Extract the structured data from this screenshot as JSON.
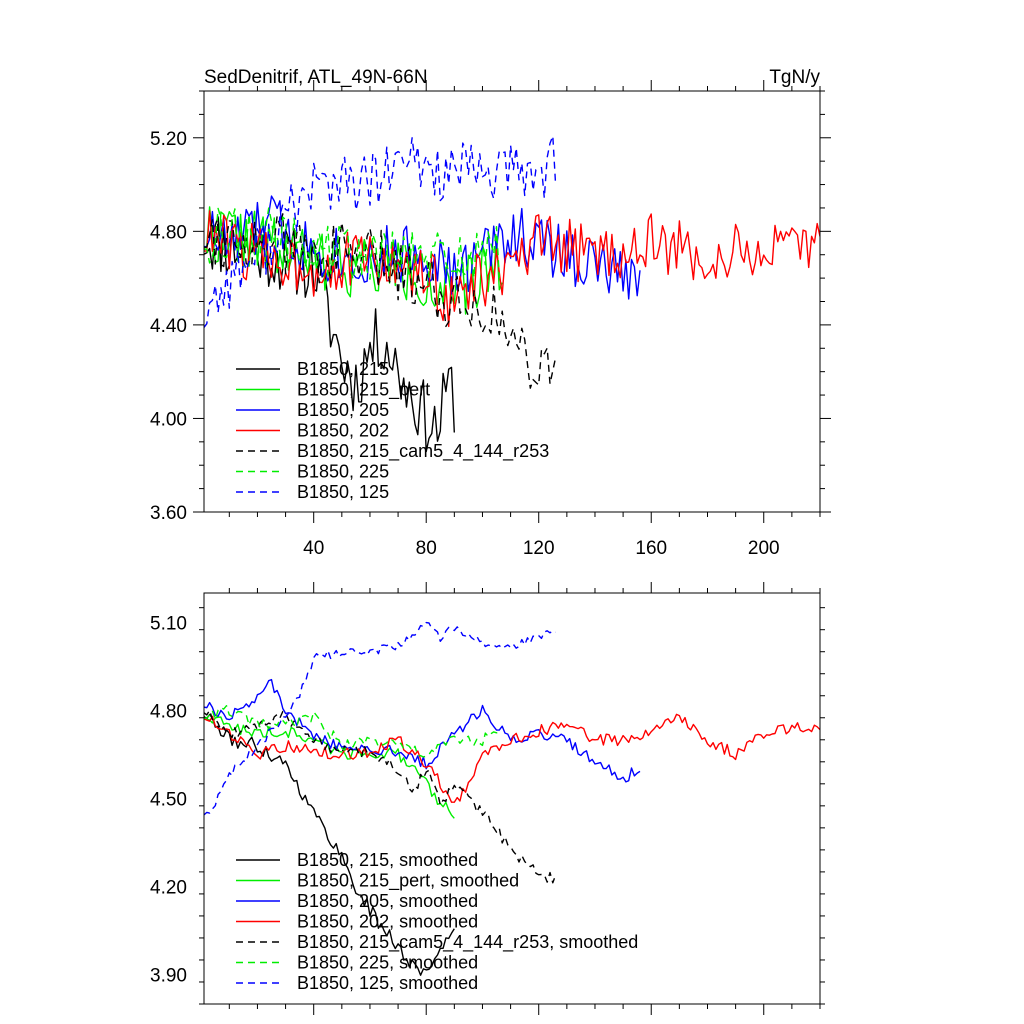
{
  "chart_data": [
    {
      "type": "line",
      "title": "SedDenitrif, ATL_49N-66N",
      "units": "TgN/y",
      "xlim": [
        1,
        220
      ],
      "ylim": [
        3.6,
        5.4
      ],
      "xticks": [
        40,
        80,
        120,
        160,
        200
      ],
      "yticks": [
        3.6,
        4.0,
        4.4,
        4.8,
        5.2
      ],
      "ytick_labels": [
        "3.60",
        "4.00",
        "4.40",
        "4.80",
        "5.20"
      ],
      "legend_position": "bottom-left",
      "series": [
        {
          "name": "B1850, 215",
          "color": "#000000",
          "dash": "solid",
          "n": 90,
          "anchors": [
            [
              1,
              4.78
            ],
            [
              10,
              4.74
            ],
            [
              20,
              4.72
            ],
            [
              30,
              4.68
            ],
            [
              40,
              4.65
            ],
            [
              45,
              4.45
            ],
            [
              50,
              4.25
            ],
            [
              55,
              4.15
            ],
            [
              60,
              4.3
            ],
            [
              65,
              4.35
            ],
            [
              70,
              4.2
            ],
            [
              75,
              4.1
            ],
            [
              80,
              4.0
            ],
            [
              84,
              3.95
            ],
            [
              88,
              4.15
            ],
            [
              90,
              4.08
            ]
          ],
          "amp": 0.15,
          "seed": 11
        },
        {
          "name": "B1850, 215_pert",
          "color": "#00ee00",
          "dash": "solid",
          "n": 107,
          "anchors": [
            [
              1,
              4.8
            ],
            [
              15,
              4.78
            ],
            [
              30,
              4.7
            ],
            [
              50,
              4.66
            ],
            [
              70,
              4.64
            ],
            [
              80,
              4.6
            ],
            [
              90,
              4.5
            ],
            [
              100,
              4.62
            ],
            [
              107,
              4.7
            ]
          ],
          "amp": 0.14,
          "seed": 22
        },
        {
          "name": "B1850, 205",
          "color": "#0000ff",
          "dash": "solid",
          "n": 156,
          "anchors": [
            [
              1,
              4.8
            ],
            [
              10,
              4.75
            ],
            [
              25,
              4.85
            ],
            [
              35,
              4.75
            ],
            [
              55,
              4.68
            ],
            [
              70,
              4.7
            ],
            [
              80,
              4.72
            ],
            [
              90,
              4.6
            ],
            [
              100,
              4.7
            ],
            [
              110,
              4.8
            ],
            [
              120,
              4.75
            ],
            [
              130,
              4.7
            ],
            [
              140,
              4.65
            ],
            [
              150,
              4.6
            ],
            [
              156,
              4.65
            ]
          ],
          "amp": 0.13,
          "seed": 33
        },
        {
          "name": "B1850, 202",
          "color": "#ff0000",
          "dash": "solid",
          "n": 220,
          "anchors": [
            [
              1,
              4.78
            ],
            [
              20,
              4.7
            ],
            [
              40,
              4.65
            ],
            [
              60,
              4.68
            ],
            [
              80,
              4.6
            ],
            [
              90,
              4.5
            ],
            [
              100,
              4.6
            ],
            [
              110,
              4.62
            ],
            [
              120,
              4.75
            ],
            [
              140,
              4.7
            ],
            [
              160,
              4.75
            ],
            [
              180,
              4.68
            ],
            [
              200,
              4.72
            ],
            [
              210,
              4.7
            ],
            [
              220,
              4.75
            ]
          ],
          "amp": 0.13,
          "seed": 44
        },
        {
          "name": "B1850, 215_cam5_4_144_r253",
          "color": "#000000",
          "dash": "dashed",
          "n": 126,
          "anchors": [
            [
              1,
              4.8
            ],
            [
              20,
              4.75
            ],
            [
              40,
              4.72
            ],
            [
              60,
              4.68
            ],
            [
              80,
              4.6
            ],
            [
              90,
              4.5
            ],
            [
              100,
              4.5
            ],
            [
              110,
              4.35
            ],
            [
              118,
              4.25
            ],
            [
              126,
              4.2
            ]
          ],
          "amp": 0.14,
          "seed": 55
        },
        {
          "name": "B1850, 225",
          "color": "#00ee00",
          "dash": "dashed",
          "n": 106,
          "anchors": [
            [
              1,
              4.78
            ],
            [
              20,
              4.8
            ],
            [
              40,
              4.72
            ],
            [
              60,
              4.7
            ],
            [
              80,
              4.68
            ],
            [
              90,
              4.7
            ],
            [
              100,
              4.7
            ],
            [
              106,
              4.7
            ]
          ],
          "amp": 0.12,
          "seed": 66
        },
        {
          "name": "B1850, 125",
          "color": "#0000ff",
          "dash": "dashed",
          "n": 126,
          "anchors": [
            [
              1,
              4.45
            ],
            [
              10,
              4.6
            ],
            [
              20,
              4.7
            ],
            [
              30,
              4.85
            ],
            [
              40,
              5.0
            ],
            [
              60,
              5.0
            ],
            [
              75,
              5.1
            ],
            [
              85,
              5.05
            ],
            [
              100,
              5.05
            ],
            [
              110,
              5.05
            ],
            [
              120,
              5.05
            ],
            [
              126,
              5.1
            ]
          ],
          "amp": 0.13,
          "seed": 77
        }
      ]
    },
    {
      "type": "line",
      "xlim": [
        1,
        220
      ],
      "ylim": [
        3.8,
        5.2
      ],
      "xticks": [
        40,
        80,
        120,
        160,
        200
      ],
      "yticks": [
        3.9,
        4.2,
        4.5,
        4.8,
        5.1
      ],
      "ytick_labels": [
        "3.90",
        "4.20",
        "4.50",
        "4.80",
        "5.10"
      ],
      "legend_position": "bottom-left",
      "series": [
        {
          "name": "B1850, 215, smoothed",
          "color": "#000000",
          "dash": "solid",
          "n": 90,
          "anchors": [
            [
              1,
              4.79
            ],
            [
              10,
              4.7
            ],
            [
              20,
              4.68
            ],
            [
              30,
              4.62
            ],
            [
              40,
              4.45
            ],
            [
              45,
              4.38
            ],
            [
              50,
              4.3
            ],
            [
              55,
              4.2
            ],
            [
              60,
              4.12
            ],
            [
              65,
              4.05
            ],
            [
              70,
              4.0
            ],
            [
              75,
              3.93
            ],
            [
              80,
              3.9
            ],
            [
              85,
              4.0
            ],
            [
              90,
              4.05
            ]
          ],
          "amp": 0.025,
          "seed": 111
        },
        {
          "name": "B1850, 215_pert, smoothed",
          "color": "#00ee00",
          "dash": "solid",
          "n": 90,
          "anchors": [
            [
              1,
              4.78
            ],
            [
              10,
              4.75
            ],
            [
              20,
              4.72
            ],
            [
              30,
              4.73
            ],
            [
              40,
              4.7
            ],
            [
              50,
              4.65
            ],
            [
              60,
              4.66
            ],
            [
              70,
              4.65
            ],
            [
              75,
              4.6
            ],
            [
              80,
              4.55
            ],
            [
              85,
              4.48
            ],
            [
              90,
              4.45
            ]
          ],
          "amp": 0.02,
          "seed": 122
        },
        {
          "name": "B1850, 205, smoothed",
          "color": "#0000ff",
          "dash": "solid",
          "n": 156,
          "anchors": [
            [
              1,
              4.82
            ],
            [
              10,
              4.78
            ],
            [
              20,
              4.85
            ],
            [
              25,
              4.9
            ],
            [
              30,
              4.8
            ],
            [
              40,
              4.72
            ],
            [
              50,
              4.67
            ],
            [
              60,
              4.67
            ],
            [
              70,
              4.66
            ],
            [
              80,
              4.62
            ],
            [
              90,
              4.72
            ],
            [
              100,
              4.8
            ],
            [
              110,
              4.7
            ],
            [
              120,
              4.72
            ],
            [
              130,
              4.7
            ],
            [
              140,
              4.62
            ],
            [
              150,
              4.57
            ],
            [
              156,
              4.6
            ]
          ],
          "amp": 0.02,
          "seed": 133
        },
        {
          "name": "B1850, 202, smoothed",
          "color": "#ff0000",
          "dash": "solid",
          "n": 220,
          "anchors": [
            [
              1,
              4.78
            ],
            [
              10,
              4.72
            ],
            [
              20,
              4.65
            ],
            [
              30,
              4.68
            ],
            [
              40,
              4.66
            ],
            [
              50,
              4.65
            ],
            [
              60,
              4.66
            ],
            [
              70,
              4.7
            ],
            [
              80,
              4.62
            ],
            [
              85,
              4.55
            ],
            [
              90,
              4.47
            ],
            [
              95,
              4.55
            ],
            [
              100,
              4.65
            ],
            [
              110,
              4.7
            ],
            [
              120,
              4.73
            ],
            [
              130,
              4.75
            ],
            [
              140,
              4.7
            ],
            [
              150,
              4.7
            ],
            [
              160,
              4.72
            ],
            [
              170,
              4.78
            ],
            [
              180,
              4.7
            ],
            [
              190,
              4.65
            ],
            [
              200,
              4.72
            ],
            [
              210,
              4.74
            ],
            [
              220,
              4.75
            ]
          ],
          "amp": 0.02,
          "seed": 144
        },
        {
          "name": "B1850, 215_cam5_4_144_r253, smoothed",
          "color": "#000000",
          "dash": "dashed",
          "n": 126,
          "anchors": [
            [
              1,
              4.8
            ],
            [
              10,
              4.72
            ],
            [
              20,
              4.75
            ],
            [
              30,
              4.78
            ],
            [
              40,
              4.7
            ],
            [
              50,
              4.66
            ],
            [
              60,
              4.66
            ],
            [
              70,
              4.6
            ],
            [
              75,
              4.52
            ],
            [
              80,
              4.6
            ],
            [
              85,
              4.48
            ],
            [
              90,
              4.55
            ],
            [
              95,
              4.5
            ],
            [
              100,
              4.45
            ],
            [
              105,
              4.4
            ],
            [
              110,
              4.32
            ],
            [
              115,
              4.28
            ],
            [
              120,
              4.25
            ],
            [
              126,
              4.22
            ]
          ],
          "amp": 0.02,
          "seed": 155
        },
        {
          "name": "B1850, 225, smoothed",
          "color": "#00ee00",
          "dash": "dashed",
          "n": 106,
          "anchors": [
            [
              1,
              4.78
            ],
            [
              10,
              4.8
            ],
            [
              20,
              4.75
            ],
            [
              30,
              4.75
            ],
            [
              40,
              4.78
            ],
            [
              50,
              4.68
            ],
            [
              60,
              4.7
            ],
            [
              70,
              4.68
            ],
            [
              80,
              4.65
            ],
            [
              90,
              4.7
            ],
            [
              100,
              4.7
            ],
            [
              106,
              4.72
            ]
          ],
          "amp": 0.02,
          "seed": 166
        },
        {
          "name": "B1850, 125, smoothed",
          "color": "#0000ff",
          "dash": "dashed",
          "n": 126,
          "anchors": [
            [
              1,
              4.45
            ],
            [
              5,
              4.48
            ],
            [
              10,
              4.58
            ],
            [
              20,
              4.68
            ],
            [
              30,
              4.78
            ],
            [
              35,
              4.85
            ],
            [
              40,
              4.98
            ],
            [
              50,
              5.0
            ],
            [
              60,
              5.0
            ],
            [
              70,
              5.02
            ],
            [
              80,
              5.1
            ],
            [
              85,
              5.05
            ],
            [
              90,
              5.08
            ],
            [
              95,
              5.05
            ],
            [
              100,
              5.03
            ],
            [
              110,
              5.02
            ],
            [
              120,
              5.05
            ],
            [
              126,
              5.07
            ]
          ],
          "amp": 0.015,
          "seed": 177
        }
      ]
    }
  ]
}
